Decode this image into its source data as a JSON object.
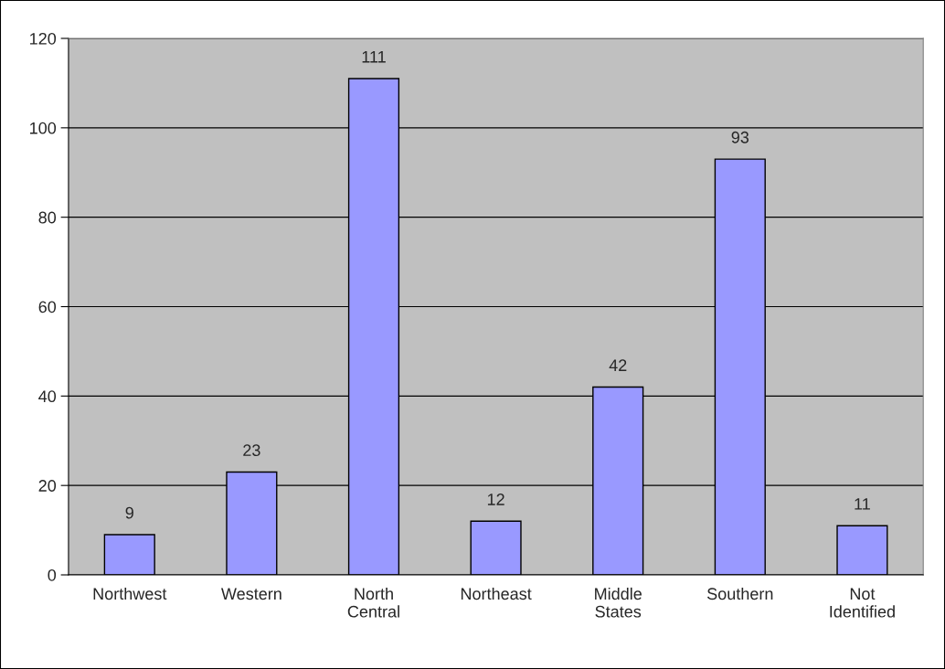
{
  "chart_data": {
    "type": "bar",
    "categories": [
      "Northwest",
      "Western",
      "North\nCentral",
      "Northeast",
      "Middle\nStates",
      "Southern",
      "Not\nIdentified"
    ],
    "values": [
      9,
      23,
      111,
      12,
      42,
      93,
      11
    ],
    "color": "#9999ff",
    "ylim": [
      0,
      120
    ],
    "yticks": [
      0,
      20,
      40,
      60,
      80,
      100,
      120
    ],
    "grid": "y",
    "data_labels": true,
    "legend": false
  }
}
